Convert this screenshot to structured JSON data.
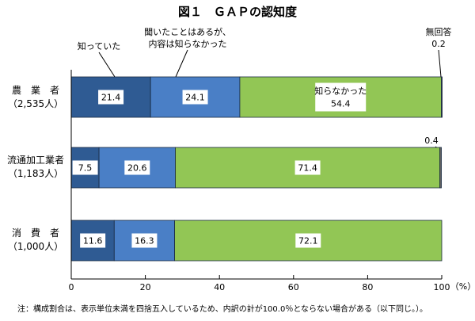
{
  "chart_data": {
    "type": "bar",
    "orientation": "horizontal",
    "stacked": true,
    "title": "図１　ＧＡＰの認知度",
    "categories": [
      {
        "name": "農　業　者",
        "sub": "（2,535人）"
      },
      {
        "name": "流通加工業者",
        "sub": "（1,183人）"
      },
      {
        "name": "消　費　者",
        "sub": "（1,000人）"
      }
    ],
    "series": [
      {
        "name": "知っていた",
        "color": "#2f5b93",
        "values": [
          21.4,
          7.5,
          11.6
        ]
      },
      {
        "name": "聞いたことはあるが、\n内容は知らなかった",
        "color": "#4a7fc6",
        "values": [
          24.1,
          20.6,
          16.3
        ]
      },
      {
        "name": "知らなかった",
        "color": "#92c655",
        "values": [
          54.4,
          71.4,
          72.1
        ]
      },
      {
        "name": "無回答",
        "color": "#666666",
        "values": [
          0.2,
          0.4,
          0.0
        ]
      }
    ],
    "xlim": [
      0,
      100
    ],
    "xticks": [
      0,
      20,
      40,
      60,
      80,
      100
    ],
    "xunit": "（%）",
    "grid": false,
    "annotations": {
      "series_labels": [
        "知っていた",
        "聞いたことはあるが、",
        "内容は知らなかった",
        "無回答"
      ],
      "inbar_label_1": "知らなかった",
      "inbar_value_1": "54.4",
      "outside_value_0": "0.2",
      "outside_value_1": "0.4"
    }
  },
  "note": "注：構成割合は、表示単位未満を四捨五入しているため、内訳の計が100.0％とならない場合がある（以下同じ。）。"
}
